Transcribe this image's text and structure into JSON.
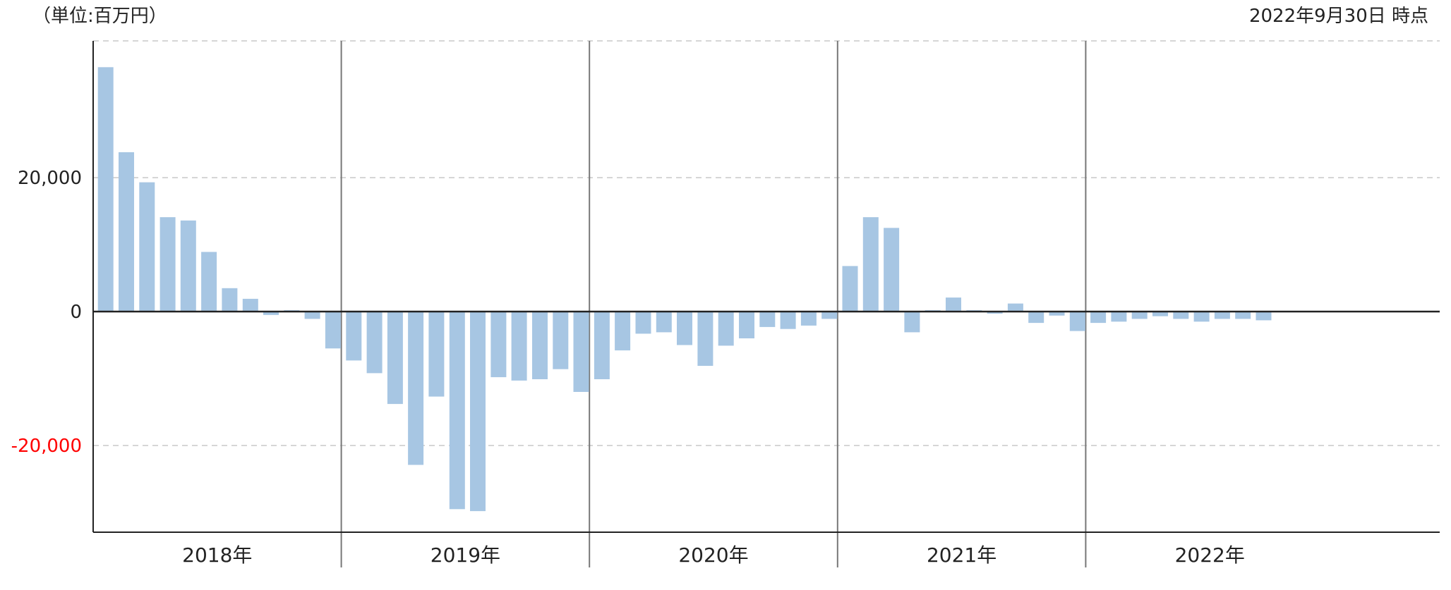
{
  "header": {
    "unit": "（単位:百万円）",
    "as_of": "2022年9月30日 時点"
  },
  "colors": {
    "bar": "#a7c6e3",
    "negative_tick": "#ff0000",
    "axis": "#222222",
    "grid": "#c8c8c8",
    "divider": "#777777"
  },
  "chart_data": {
    "type": "bar",
    "title": "",
    "xlabel": "",
    "ylabel": "",
    "ylim": [
      -33600,
      40000
    ],
    "yticks": [
      {
        "value": 20000,
        "label": "20,000"
      },
      {
        "value": 0,
        "label": "0"
      },
      {
        "value": -20000,
        "label": "-20,000"
      }
    ],
    "grid": true,
    "legend": "none",
    "groups": [
      {
        "label": "2018年",
        "values": [
          36500,
          23800,
          19300,
          14100,
          13600,
          8900,
          3500,
          1900,
          -500,
          200,
          -1100,
          -5500
        ]
      },
      {
        "label": "2019年",
        "values": [
          -7300,
          -9200,
          -13800,
          -22900,
          -12700,
          -29500,
          -29800,
          -9800,
          -10300,
          -10100,
          -8600,
          -12000
        ]
      },
      {
        "label": "2020年",
        "values": [
          -10100,
          -5800,
          -3300,
          -3100,
          -5000,
          -8100,
          -5100,
          -4000,
          -2300,
          -2600,
          -2100,
          -1100
        ]
      },
      {
        "label": "2021年",
        "values": [
          6800,
          14100,
          12500,
          -3100,
          200,
          2100,
          200,
          -300,
          1200,
          -1700,
          -600,
          -2900
        ]
      },
      {
        "label": "2022年",
        "values": [
          -1700,
          -1500,
          -1100,
          -700,
          -1100,
          -1500,
          -1100,
          -1100,
          -1300
        ]
      }
    ]
  }
}
